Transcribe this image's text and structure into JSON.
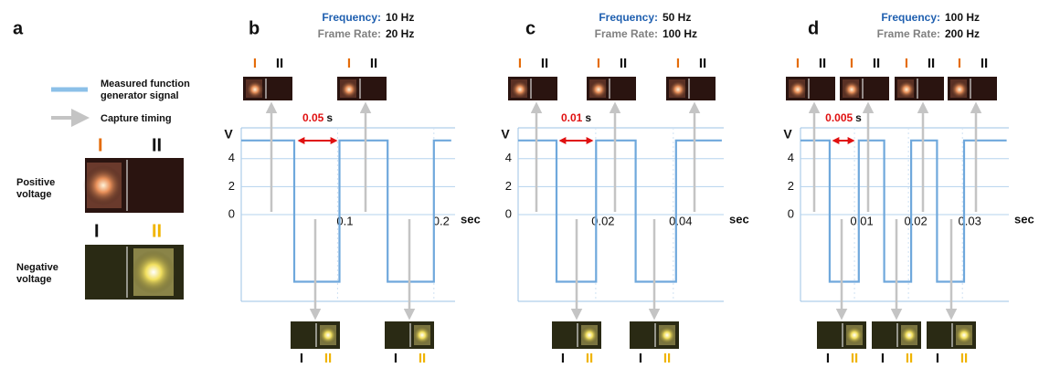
{
  "panel_a": {
    "label": "a",
    "legend": [
      {
        "text": [
          "Measured function",
          "generator signal"
        ]
      },
      {
        "text": [
          "Capture timing"
        ]
      }
    ],
    "positive": {
      "text": [
        "Positive",
        "voltage"
      ]
    },
    "negative": {
      "text": [
        "Negative",
        "voltage"
      ]
    }
  },
  "frame_labels": [
    "I",
    "II"
  ],
  "chart_data": [
    {
      "type": "line",
      "panel_label": "b",
      "frequency_label": "Frequency:",
      "frequency": "10 Hz",
      "frame_rate_label": "Frame Rate:",
      "frame_rate": "20 Hz",
      "period": "0.05",
      "period_unit": "s",
      "y_label": "V",
      "x_label": "sec",
      "xlim": [
        0,
        0.222
      ],
      "ylim": [
        -6.2,
        6.2
      ],
      "xticks": [
        0.1,
        0.2
      ],
      "yticks": [
        0,
        2,
        4
      ],
      "grid": true,
      "color": "#6fa8dc",
      "x": [
        0,
        0.055,
        0.055,
        0.102,
        0.102,
        0.152,
        0.152,
        0.2,
        0.2,
        0.218
      ],
      "values": [
        5.3,
        5.3,
        -4.8,
        -4.8,
        5.3,
        5.3,
        -4.8,
        -4.8,
        5.3,
        5.3
      ]
    },
    {
      "type": "line",
      "panel_label": "c",
      "frequency_label": "Frequency:",
      "frequency": "50 Hz",
      "frame_rate_label": "Frame Rate:",
      "frame_rate": "100 Hz",
      "period": "0.01",
      "period_unit": "s",
      "y_label": "V",
      "x_label": "sec",
      "xlim": [
        0,
        0.053
      ],
      "ylim": [
        -6.2,
        6.2
      ],
      "xticks": [
        0.02,
        0.04
      ],
      "yticks": [
        0,
        2,
        4
      ],
      "grid": true,
      "color": "#6fa8dc",
      "x": [
        0,
        0.0099,
        0.0099,
        0.0201,
        0.0201,
        0.0303,
        0.0303,
        0.0407,
        0.0407,
        0.0525
      ],
      "values": [
        5.3,
        5.3,
        -4.8,
        -4.8,
        5.3,
        5.3,
        -4.8,
        -4.8,
        5.3,
        5.3
      ]
    },
    {
      "type": "line",
      "panel_label": "d",
      "frequency_label": "Frequency:",
      "frequency": "100 Hz",
      "frame_rate_label": "Frame Rate:",
      "frame_rate": "200 Hz",
      "period": "0.005",
      "period_unit": "s",
      "y_label": "V",
      "x_label": "sec",
      "xlim": [
        0,
        0.0386
      ],
      "ylim": [
        -6.2,
        6.2
      ],
      "xticks": [
        0.01,
        0.02,
        0.03
      ],
      "yticks": [
        0,
        2,
        4
      ],
      "grid": true,
      "color": "#6fa8dc",
      "x": [
        0,
        0.0054,
        0.0054,
        0.0108,
        0.0108,
        0.0155,
        0.0155,
        0.0205,
        0.0205,
        0.0253,
        0.0253,
        0.0303,
        0.0303,
        0.0382
      ],
      "values": [
        5.3,
        5.3,
        -4.8,
        -4.8,
        5.3,
        5.3,
        -4.8,
        -4.8,
        5.3,
        5.3,
        -4.8,
        -4.8,
        5.3,
        5.3
      ]
    }
  ]
}
